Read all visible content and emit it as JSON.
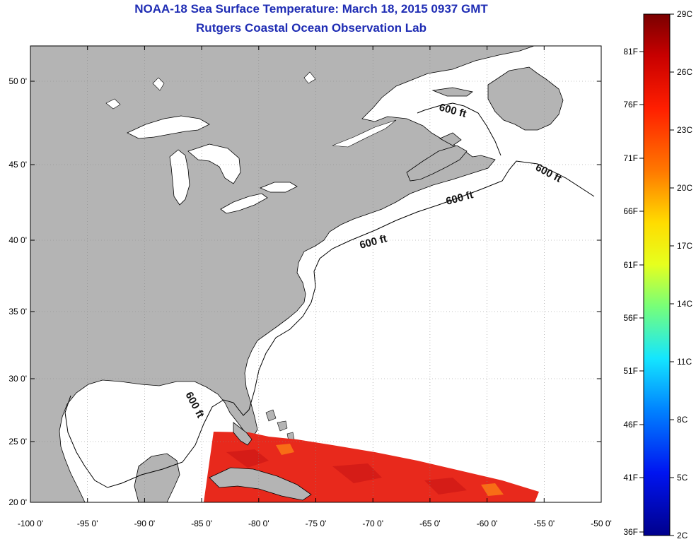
{
  "title": {
    "line1": "NOAA-18 Sea Surface Temperature:  March 18, 2015 0937 GMT",
    "line2": "Rutgers Coastal Ocean Observation Lab"
  },
  "map": {
    "lon_labels": [
      "-100 0'",
      "-95 0'",
      "-90 0'",
      "-85 0'",
      "-80 0'",
      "-75 0'",
      "-70 0'",
      "-65 0'",
      "-60 0'",
      "-55 0'",
      "-50 0'"
    ],
    "lat_labels": [
      "50 0'",
      "45 0'",
      "40 0'",
      "35 0'",
      "30 0'",
      "25 0'",
      "20 0'"
    ],
    "contour_label": "600 ft",
    "land_color": "#b4b4b4",
    "ocean_color": "#ffffff",
    "sst_color": "#e8291c"
  },
  "colorbar": {
    "celsius_labels": [
      "29C",
      "26C",
      "23C",
      "20C",
      "17C",
      "14C",
      "11C",
      "8C",
      "5C",
      "2C"
    ],
    "fahrenheit_labels": [
      "81F",
      "76F",
      "71F",
      "66F",
      "61F",
      "56F",
      "51F",
      "46F",
      "41F",
      "36F"
    ],
    "colors": [
      "#7a0000",
      "#e60000",
      "#ff5a00",
      "#ffd200",
      "#f0ff14",
      "#8cff6e",
      "#14f0ff",
      "#0096ff",
      "#0028ff",
      "#00008c"
    ]
  }
}
